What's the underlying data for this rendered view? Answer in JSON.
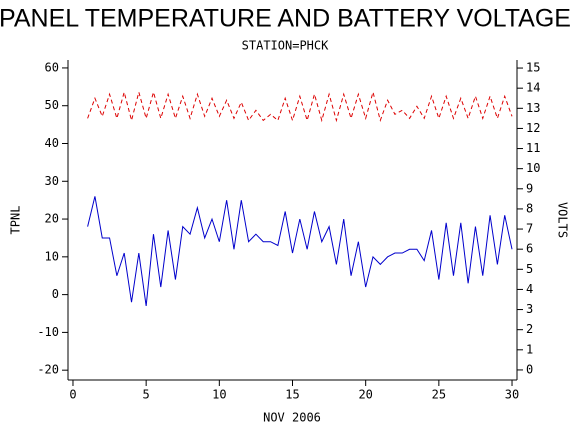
{
  "chart_data": {
    "type": "line",
    "title": "PANEL TEMPERATURE AND BATTERY VOLTAGE",
    "subtitle": "STATION=PHCK",
    "xlabel": "NOV 2006",
    "ylabel": "TPNL",
    "y2label": "VOLTS",
    "x": [
      1,
      1.5,
      2,
      2.5,
      3,
      3.5,
      4,
      4.5,
      5,
      5.5,
      6,
      6.5,
      7,
      7.5,
      8,
      8.5,
      9,
      9.5,
      10,
      10.5,
      11,
      11.5,
      12,
      12.5,
      13,
      13.5,
      14,
      14.5,
      15,
      15.5,
      16,
      16.5,
      17,
      17.5,
      18,
      18.5,
      19,
      19.5,
      20,
      20.5,
      21,
      21.5,
      22,
      22.5,
      23,
      23.5,
      24,
      24.5,
      25,
      25.5,
      26,
      26.5,
      27,
      27.5,
      28,
      28.5,
      29,
      29.5,
      30
    ],
    "series": [
      {
        "name": "TPNL",
        "color": "#0000cc",
        "line_style": "solid",
        "values": [
          18,
          26,
          15,
          15,
          5,
          11,
          -2,
          11,
          -3,
          16,
          2,
          17,
          4,
          18,
          16,
          23,
          15,
          20,
          14,
          25,
          12,
          25,
          14,
          16,
          14,
          14,
          13,
          22,
          11,
          20,
          12,
          22,
          14,
          18,
          8,
          20,
          5,
          14,
          2,
          10,
          8,
          10,
          11,
          11,
          12,
          12,
          9,
          17,
          4,
          19,
          5,
          19,
          3,
          18,
          5,
          21,
          8,
          21,
          12
        ]
      },
      {
        "name": "VOLTS",
        "color": "#dd0000",
        "line_style": "dashed",
        "axis": "y2",
        "values": [
          12.5,
          13.5,
          12.6,
          13.7,
          12.5,
          13.8,
          12.4,
          13.8,
          12.5,
          13.8,
          12.5,
          13.7,
          12.5,
          13.6,
          12.5,
          13.7,
          12.6,
          13.5,
          12.6,
          13.4,
          12.5,
          13.3,
          12.4,
          12.9,
          12.4,
          12.7,
          12.4,
          13.5,
          12.4,
          13.6,
          12.4,
          13.7,
          12.4,
          13.7,
          12.4,
          13.7,
          12.5,
          13.7,
          12.5,
          13.8,
          12.4,
          13.4,
          12.7,
          12.9,
          12.5,
          13.1,
          12.5,
          13.6,
          12.5,
          13.6,
          12.5,
          13.5,
          12.5,
          13.6,
          12.5,
          13.6,
          12.5,
          13.6,
          12.6
        ]
      }
    ],
    "xlim": [
      -0.34,
      30.34
    ],
    "xticks": [
      0,
      5,
      10,
      15,
      20,
      25,
      30
    ],
    "ylim": [
      -22.6,
      62.1
    ],
    "yticks": [
      -20,
      -10,
      0,
      10,
      20,
      30,
      40,
      50,
      60
    ],
    "y2lim": [
      -0.5,
      15.4
    ],
    "y2ticks": [
      0,
      1,
      2,
      3,
      4,
      5,
      6,
      7,
      8,
      9,
      10,
      11,
      12,
      13,
      14,
      15
    ]
  }
}
